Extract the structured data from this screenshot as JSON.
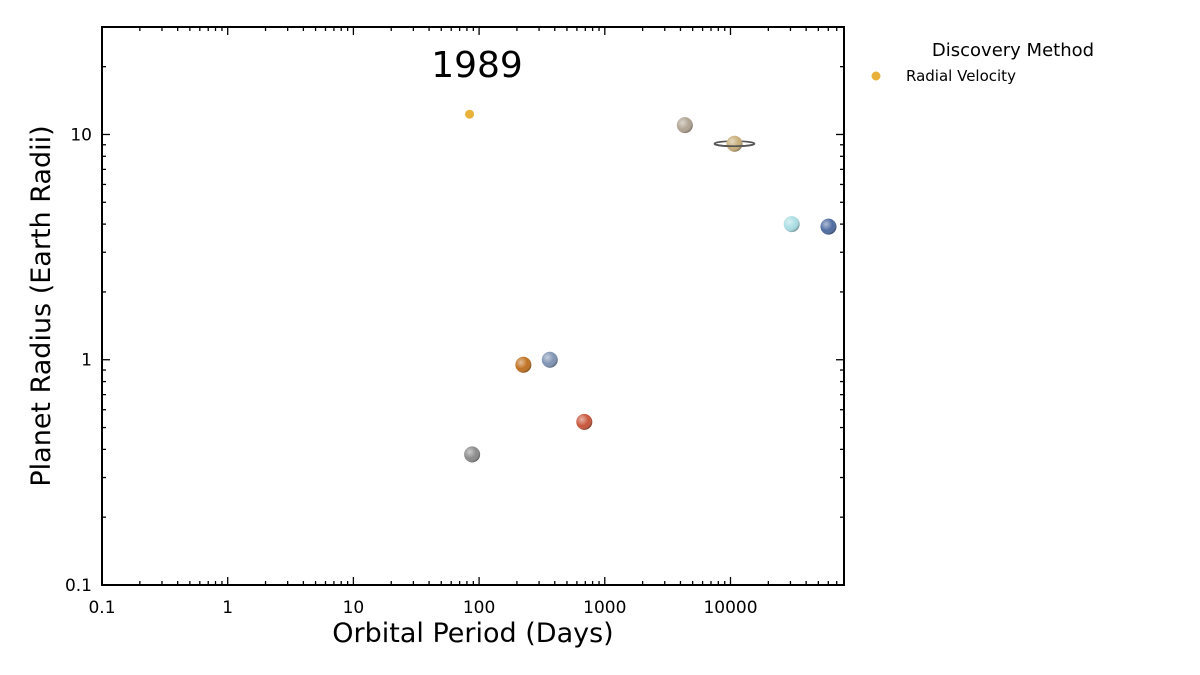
{
  "chart_data": {
    "type": "scatter",
    "annotation": "1989",
    "xlabel": "Orbital Period (Days)",
    "ylabel": "Planet Radius (Earth Radii)",
    "xscale": "log",
    "yscale": "log",
    "xlim": [
      0.1,
      80000
    ],
    "ylim": [
      0.1,
      30
    ],
    "x_ticks": [
      0.1,
      1,
      10,
      100,
      1000,
      10000
    ],
    "x_tick_labels": [
      "0.1",
      "1",
      "10",
      "100",
      "1000",
      "10000"
    ],
    "y_ticks": [
      0.1,
      1,
      10
    ],
    "y_tick_labels": [
      "0.1",
      "1",
      "10"
    ],
    "grid": false,
    "legend": {
      "title": "Discovery Method",
      "placement": "outside-top-right",
      "entries": [
        {
          "label": "Radial Velocity",
          "color": "#E8B23A"
        }
      ]
    },
    "series": [
      {
        "name": "Radial Velocity",
        "color": "#E8B23A",
        "points": [
          {
            "x": 84,
            "y": 12.3
          }
        ]
      }
    ],
    "solar_system_planets": [
      {
        "icon": "mercury-icon",
        "x": 88,
        "y": 0.38,
        "color": "#8a8a8a"
      },
      {
        "icon": "venus-icon",
        "x": 225,
        "y": 0.95,
        "color": "#c07020"
      },
      {
        "icon": "earth-icon",
        "x": 365,
        "y": 1.0,
        "color": "#7f93b3"
      },
      {
        "icon": "mars-icon",
        "x": 687,
        "y": 0.53,
        "color": "#c8553a"
      },
      {
        "icon": "jupiter-icon",
        "x": 4333,
        "y": 11.0,
        "color": "#b0a392"
      },
      {
        "icon": "saturn-icon",
        "x": 10759,
        "y": 9.1,
        "color": "#c8ad78"
      },
      {
        "icon": "uranus-icon",
        "x": 30687,
        "y": 4.0,
        "color": "#a9dde3"
      },
      {
        "icon": "neptune-icon",
        "x": 60190,
        "y": 3.9,
        "color": "#4d6aa0"
      }
    ]
  }
}
